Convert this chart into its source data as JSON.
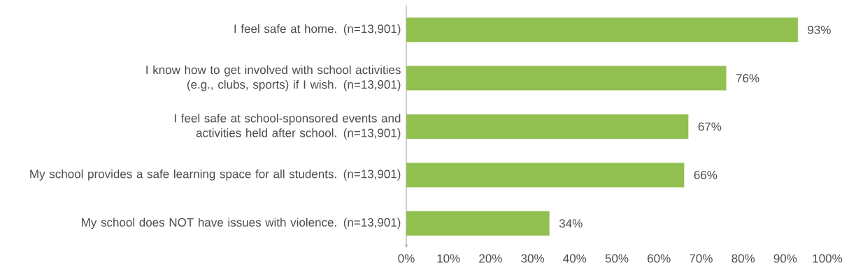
{
  "chart_data": {
    "type": "bar",
    "orientation": "horizontal",
    "categories": [
      "I feel safe at home. (n=13,901)",
      "I know how to get involved with school activities (e.g., clubs, sports) if I wish. (n=13,901)",
      "I feel safe at school-sponsored events and activities held after school. (n=13,901)",
      "My school provides a safe learning space for all students. (n=13,901)",
      "My school does NOT have issues with violence. (n=13,901)"
    ],
    "values": [
      93,
      76,
      67,
      66,
      34
    ],
    "value_labels": [
      "93%",
      "76%",
      "67%",
      "66%",
      "34%"
    ],
    "color": "#92c050",
    "xlim": [
      0,
      100
    ],
    "xticks": [
      {
        "value": 0,
        "label": "0%"
      },
      {
        "value": 10,
        "label": "10%"
      },
      {
        "value": 20,
        "label": "20%"
      },
      {
        "value": 30,
        "label": "30%"
      },
      {
        "value": 40,
        "label": "40%"
      },
      {
        "value": 50,
        "label": "50%"
      },
      {
        "value": 60,
        "label": "60%"
      },
      {
        "value": 70,
        "label": "70%"
      },
      {
        "value": 80,
        "label": "80%"
      },
      {
        "value": 90,
        "label": "90%"
      },
      {
        "value": 100,
        "label": "100%"
      }
    ]
  }
}
